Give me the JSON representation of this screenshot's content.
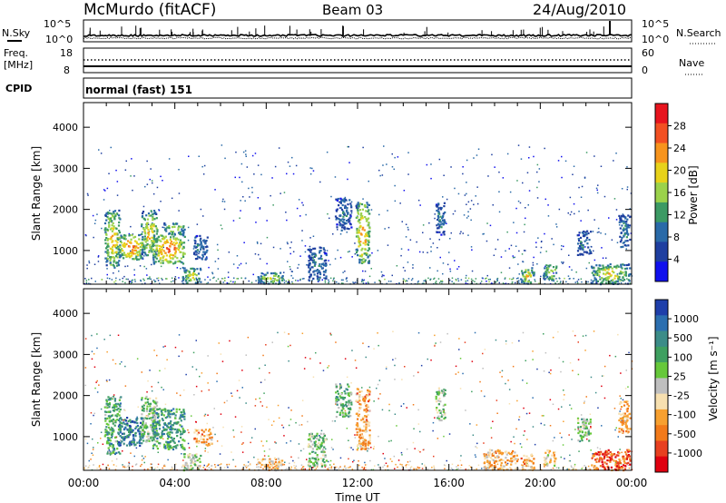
{
  "header": {
    "station": "McMurdo (fitACF)",
    "beam": "Beam 03",
    "date": "24/Aug/2010"
  },
  "noise_panel": {
    "left_label": "N.Sky",
    "right_label": "N.Search",
    "left_ticks": [
      "10^5",
      "10^0"
    ],
    "right_ticks": [
      "10^5",
      "10^0"
    ]
  },
  "freq_panel": {
    "left_label_1": "Freq.",
    "left_label_2": "[MHz]",
    "right_label": "Nave",
    "left_ticks": [
      "18",
      "8"
    ],
    "right_ticks": [
      "60",
      "0"
    ]
  },
  "cpid_panel": {
    "label": "CPID",
    "program": "normal (fast) 151"
  },
  "power_colorbar": {
    "title": "Power [dB]",
    "labels": [
      "28",
      "24",
      "20",
      "16",
      "12",
      "8",
      "4"
    ],
    "colors": [
      "#e8141e",
      "#f25022",
      "#f7941d",
      "#e8d21a",
      "#9bd24b",
      "#3c9a64",
      "#2a6aa8",
      "#1f3fa0",
      "#1010ee"
    ]
  },
  "velocity_colorbar": {
    "title": "Velocity [m s⁻¹]",
    "labels": [
      "1000",
      "500",
      "100",
      "25",
      "-25",
      "-100",
      "-500",
      "-1000"
    ],
    "colors": [
      "#1f3faa",
      "#2c6fb0",
      "#3c8c88",
      "#3fa060",
      "#66c83a",
      "#bfbfbf",
      "#f7e0b0",
      "#f7a030",
      "#f27a1a",
      "#e84020",
      "#e00010"
    ]
  },
  "x_axis": {
    "label": "Time UT",
    "ticks": [
      "00:00",
      "04:00",
      "08:00",
      "12:00",
      "16:00",
      "20:00",
      "00:00"
    ]
  },
  "chart_data": [
    {
      "type": "heatmap",
      "title": "",
      "xlabel": "",
      "ylabel": "Slant Range [km]",
      "colorbar_label": "Power [dB]",
      "xlim": [
        0,
        24
      ],
      "ylim": [
        180,
        4600
      ],
      "yticks": [
        "1000",
        "2000",
        "3000",
        "4000"
      ],
      "yvalues": [
        1000,
        2000,
        3000,
        4000
      ],
      "clim": [
        0,
        30
      ],
      "patches": [
        {
          "t0": 0.9,
          "t1": 1.6,
          "r0": 600,
          "r1": 2000,
          "v": 22
        },
        {
          "t0": 1.5,
          "t1": 2.6,
          "r0": 800,
          "r1": 1400,
          "v": 27
        },
        {
          "t0": 2.5,
          "t1": 3.2,
          "r0": 900,
          "r1": 2000,
          "v": 22
        },
        {
          "t0": 3.0,
          "t1": 4.4,
          "r0": 700,
          "r1": 1400,
          "v": 28
        },
        {
          "t0": 3.5,
          "t1": 4.4,
          "r0": 1400,
          "r1": 1700,
          "v": 19
        },
        {
          "t0": 4.3,
          "t1": 5.1,
          "r0": 200,
          "r1": 600,
          "v": 19
        },
        {
          "t0": 4.8,
          "t1": 5.4,
          "r0": 800,
          "r1": 1400,
          "v": 9
        },
        {
          "t0": 7.6,
          "t1": 8.7,
          "r0": 200,
          "r1": 500,
          "v": 19
        },
        {
          "t0": 9.8,
          "t1": 10.6,
          "r0": 300,
          "r1": 1100,
          "v": 11
        },
        {
          "t0": 11.0,
          "t1": 11.7,
          "r0": 1500,
          "r1": 2300,
          "v": 9
        },
        {
          "t0": 11.9,
          "t1": 12.5,
          "r0": 700,
          "r1": 2200,
          "v": 25
        },
        {
          "t0": 15.4,
          "t1": 15.8,
          "r0": 1400,
          "r1": 2200,
          "v": 10
        },
        {
          "t0": 19.1,
          "t1": 19.7,
          "r0": 200,
          "r1": 600,
          "v": 21
        },
        {
          "t0": 20.1,
          "t1": 20.7,
          "r0": 300,
          "r1": 700,
          "v": 20
        },
        {
          "t0": 21.6,
          "t1": 22.2,
          "r0": 900,
          "r1": 1500,
          "v": 10
        },
        {
          "t0": 22.2,
          "t1": 23.9,
          "r0": 200,
          "r1": 700,
          "v": 20
        },
        {
          "t0": 23.4,
          "t1": 23.9,
          "r0": 1100,
          "r1": 1900,
          "v": 10
        }
      ]
    },
    {
      "type": "heatmap",
      "title": "",
      "xlabel": "Time UT",
      "ylabel": "Slant Range [km]",
      "colorbar_label": "Velocity [m s⁻¹]",
      "xlim": [
        0,
        24
      ],
      "ylim": [
        180,
        4600
      ],
      "yticks": [
        "1000",
        "2000",
        "3000",
        "4000"
      ],
      "yvalues": [
        1000,
        2000,
        3000,
        4000
      ],
      "clim": [
        -1000,
        1000
      ],
      "patches": [
        {
          "t0": 0.9,
          "t1": 1.6,
          "r0": 600,
          "r1": 2000,
          "v": 400
        },
        {
          "t0": 1.5,
          "t1": 2.6,
          "r0": 800,
          "r1": 1500,
          "v": 700
        },
        {
          "t0": 2.5,
          "t1": 3.2,
          "r0": 900,
          "r1": 2000,
          "v": 200
        },
        {
          "t0": 3.0,
          "t1": 4.4,
          "r0": 700,
          "r1": 1700,
          "v": 500
        },
        {
          "t0": 4.3,
          "t1": 5.1,
          "r0": 200,
          "r1": 600,
          "v": 100
        },
        {
          "t0": 4.8,
          "t1": 5.6,
          "r0": 800,
          "r1": 1200,
          "v": -400
        },
        {
          "t0": 7.6,
          "t1": 8.7,
          "r0": 200,
          "r1": 500,
          "v": -300
        },
        {
          "t0": 9.8,
          "t1": 10.6,
          "r0": 300,
          "r1": 1100,
          "v": 150
        },
        {
          "t0": 11.0,
          "t1": 11.7,
          "r0": 1500,
          "r1": 2300,
          "v": 300
        },
        {
          "t0": 11.9,
          "t1": 12.5,
          "r0": 700,
          "r1": 2200,
          "v": -400
        },
        {
          "t0": 15.4,
          "t1": 15.8,
          "r0": 1400,
          "r1": 2200,
          "v": 150
        },
        {
          "t0": 17.5,
          "t1": 19.0,
          "r0": 200,
          "r1": 700,
          "v": -300
        },
        {
          "t0": 19.1,
          "t1": 19.7,
          "r0": 200,
          "r1": 600,
          "v": -400
        },
        {
          "t0": 20.1,
          "t1": 20.7,
          "r0": 300,
          "r1": 700,
          "v": -200
        },
        {
          "t0": 21.6,
          "t1": 22.2,
          "r0": 900,
          "r1": 1500,
          "v": 200
        },
        {
          "t0": 22.2,
          "t1": 23.9,
          "r0": 200,
          "r1": 700,
          "v": -700
        },
        {
          "t0": 23.4,
          "t1": 23.9,
          "r0": 1100,
          "r1": 1900,
          "v": -400
        }
      ]
    }
  ]
}
